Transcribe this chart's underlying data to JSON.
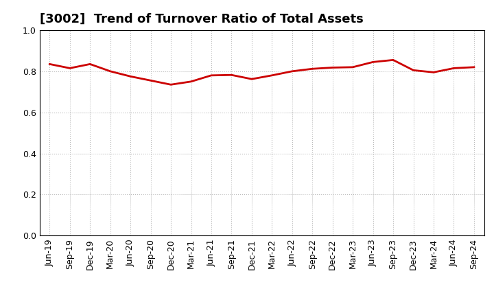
{
  "title": "[3002]  Trend of Turnover Ratio of Total Assets",
  "x_labels": [
    "Jun-19",
    "Sep-19",
    "Dec-19",
    "Mar-20",
    "Jun-20",
    "Sep-20",
    "Dec-20",
    "Mar-21",
    "Jun-21",
    "Sep-21",
    "Dec-21",
    "Mar-22",
    "Jun-22",
    "Sep-22",
    "Dec-22",
    "Mar-23",
    "Jun-23",
    "Sep-23",
    "Dec-23",
    "Mar-24",
    "Jun-24",
    "Sep-24"
  ],
  "values": [
    0.835,
    0.815,
    0.835,
    0.8,
    0.775,
    0.755,
    0.735,
    0.75,
    0.78,
    0.782,
    0.762,
    0.78,
    0.8,
    0.812,
    0.818,
    0.82,
    0.845,
    0.855,
    0.805,
    0.795,
    0.815,
    0.82
  ],
  "line_color": "#cc0000",
  "line_width": 2.0,
  "ylim": [
    0.0,
    1.0
  ],
  "yticks": [
    0.0,
    0.2,
    0.4,
    0.6,
    0.8,
    1.0
  ],
  "background_color": "#ffffff",
  "grid_color": "#bbbbbb",
  "title_fontsize": 13,
  "tick_fontsize": 9,
  "title_color": "#000000"
}
